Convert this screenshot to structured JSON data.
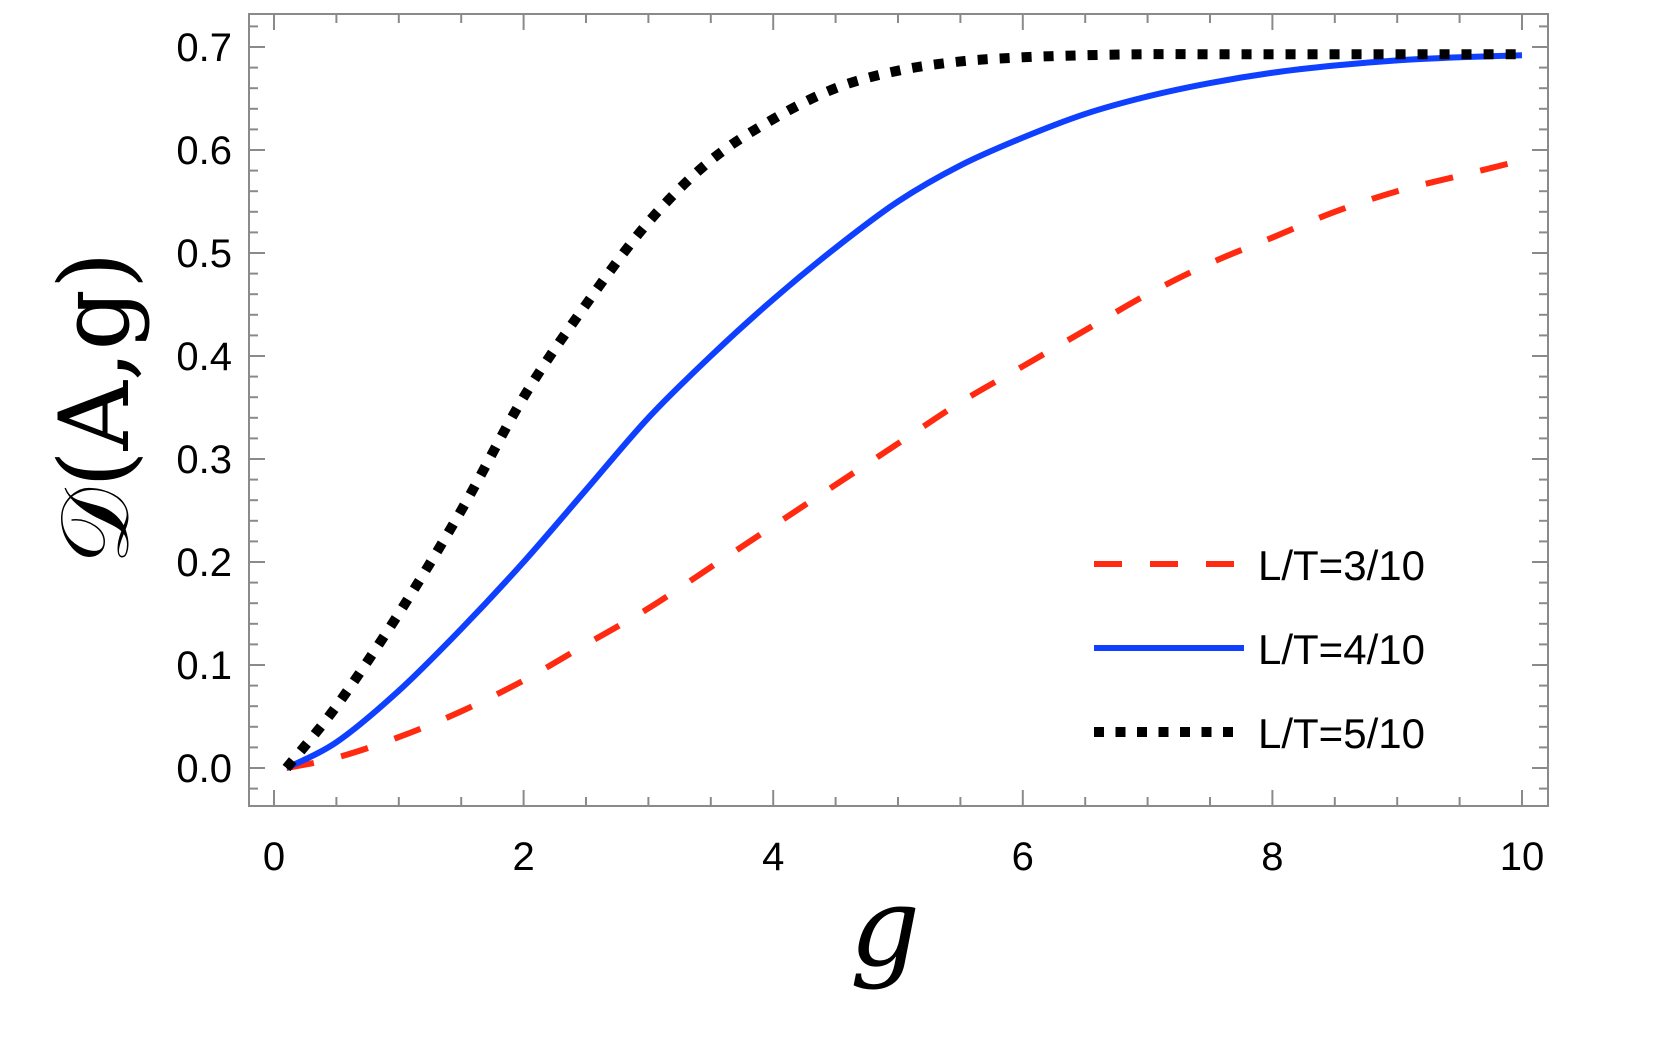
{
  "chart_data": {
    "type": "line",
    "title": "",
    "xlabel": "g",
    "ylabel": "𝒟(A,g)",
    "xlim": [
      0,
      10
    ],
    "ylim": [
      -0.03,
      0.73
    ],
    "xticks": [
      0,
      2,
      4,
      6,
      8,
      10
    ],
    "xtick_labels": [
      "0",
      "2",
      "4",
      "6",
      "8",
      "10"
    ],
    "yticks": [
      0.0,
      0.1,
      0.2,
      0.3,
      0.4,
      0.5,
      0.6,
      0.7
    ],
    "ytick_labels": [
      "0.0",
      "0.1",
      "0.2",
      "0.3",
      "0.4",
      "0.5",
      "0.6",
      "0.7"
    ],
    "grid": false,
    "legend_position": "lower right",
    "x": [
      0.1,
      0.5,
      1,
      1.5,
      2,
      2.5,
      3,
      3.5,
      4,
      4.5,
      5,
      5.5,
      6,
      6.5,
      7,
      7.5,
      8,
      8.5,
      9,
      9.5,
      10
    ],
    "series": [
      {
        "name": "L/T=3/10",
        "color": "#ff2a10",
        "style": "dashed",
        "values": [
          0.0,
          0.01,
          0.03,
          0.055,
          0.085,
          0.12,
          0.155,
          0.195,
          0.235,
          0.275,
          0.315,
          0.355,
          0.39,
          0.425,
          0.46,
          0.49,
          0.515,
          0.54,
          0.56,
          0.575,
          0.59
        ]
      },
      {
        "name": "L/T=4/10",
        "color": "#1040ff",
        "style": "solid",
        "values": [
          0.0,
          0.025,
          0.075,
          0.135,
          0.2,
          0.27,
          0.34,
          0.4,
          0.455,
          0.505,
          0.55,
          0.585,
          0.612,
          0.635,
          0.652,
          0.665,
          0.675,
          0.682,
          0.687,
          0.69,
          0.692
        ]
      },
      {
        "name": "L/T=5/10",
        "color": "#000000",
        "style": "dotted",
        "values": [
          0.0,
          0.06,
          0.15,
          0.25,
          0.36,
          0.45,
          0.53,
          0.59,
          0.63,
          0.66,
          0.677,
          0.686,
          0.69,
          0.692,
          0.693,
          0.693,
          0.693,
          0.693,
          0.693,
          0.693,
          0.693
        ]
      }
    ]
  }
}
